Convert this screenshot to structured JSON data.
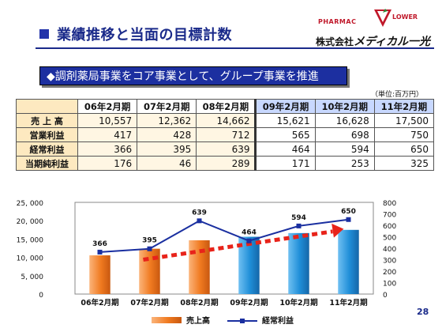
{
  "header": {
    "title": "業績推移と当面の目標計数",
    "logo_pharmac": "PHARMAC",
    "logo_flower": "LOWER",
    "company_prefix": "株式会社",
    "company_name": "メディカル一光"
  },
  "banner": {
    "text": "◆調剤薬局事業をコア事業として、グループ事業を推進"
  },
  "unit_label": "（単位:百万円）",
  "table": {
    "columns": [
      "06年2月期",
      "07年2月期",
      "08年2月期",
      "09年2月期",
      "10年2月期",
      "11年2月期"
    ],
    "rows": [
      {
        "label": "売 上 高",
        "values": [
          "10,557",
          "12,362",
          "14,662",
          "15,621",
          "16,628",
          "17,500"
        ]
      },
      {
        "label": "営業利益",
        "values": [
          "417",
          "428",
          "712",
          "565",
          "698",
          "750"
        ]
      },
      {
        "label": "経常利益",
        "values": [
          "366",
          "395",
          "639",
          "464",
          "594",
          "650"
        ]
      },
      {
        "label": "当期純利益",
        "values": [
          "176",
          "46",
          "289",
          "171",
          "253",
          "325"
        ]
      }
    ]
  },
  "chart_data": {
    "type": "bar",
    "categories": [
      "06年2月期",
      "07年2月期",
      "08年2月期",
      "09年2月期",
      "10年2月期",
      "11年2月期"
    ],
    "series": [
      {
        "name": "売上高",
        "type": "bar",
        "axis": "left",
        "values": [
          10557,
          12362,
          14662,
          15621,
          16628,
          17500
        ],
        "colors": [
          "#f07a20",
          "#f07a20",
          "#f07a20",
          "#1f8ed8",
          "#1f8ed8",
          "#1f8ed8"
        ]
      },
      {
        "name": "経常利益",
        "type": "line",
        "axis": "right",
        "values": [
          366,
          395,
          639,
          464,
          594,
          650
        ],
        "color": "#1a2fa0",
        "labels": [
          "366",
          "395",
          "639",
          "464",
          "594",
          "650"
        ]
      }
    ],
    "left_axis": {
      "min": 0,
      "max": 25000,
      "ticks": [
        "0",
        "5, 000",
        "10, 000",
        "15, 000",
        "20, 000",
        "25, 000"
      ],
      "tick_values": [
        0,
        5000,
        10000,
        15000,
        20000,
        25000
      ]
    },
    "right_axis": {
      "min": 0,
      "max": 800,
      "ticks": [
        "0",
        "100",
        "200",
        "300",
        "400",
        "500",
        "600",
        "700",
        "800"
      ],
      "tick_values": [
        0,
        100,
        200,
        300,
        400,
        500,
        600,
        700,
        800
      ]
    },
    "trend_arrow": {
      "color": "#e8231a",
      "from": {
        "category": "07年2月期",
        "value": 300
      },
      "to": {
        "category": "11年2月期",
        "value": 560
      }
    },
    "grid": false,
    "legend_position": "bottom"
  },
  "page_number": "28",
  "colors": {
    "title": "#1a2a8a",
    "banner": "#1c2fa0",
    "bar_hist": "#f07a20",
    "bar_plan": "#1f8ed8",
    "line": "#1a2fa0",
    "arrow": "#e8231a"
  }
}
